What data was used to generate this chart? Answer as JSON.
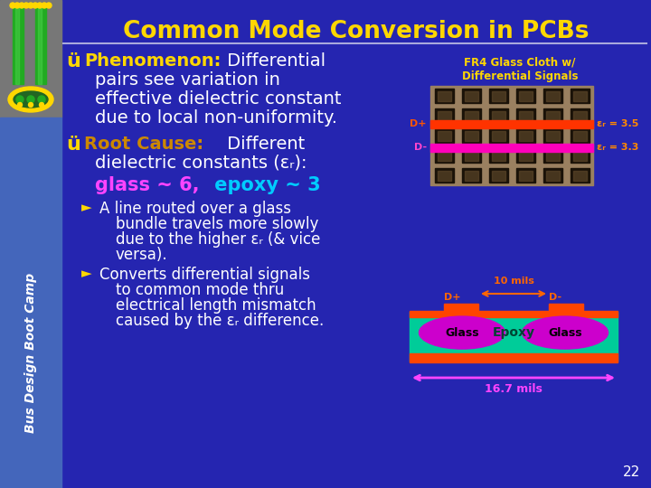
{
  "title": "Common Mode Conversion in PCBs",
  "title_color": "#FFD700",
  "bg_color": "#2525b0",
  "sidebar_top_bg": "#888888",
  "sidebar_bot_bg": "#5570cc",
  "text_color": "#ffffff",
  "bullet_check_color": "#FFD700",
  "bullet1_label": "Phenomenon:",
  "bullet1_label_color": "#FFD700",
  "bullet2_label": "Root Cause:",
  "bullet2_label_color": "#CC8800",
  "glass_color": "#FF44FF",
  "epoxy_color": "#00CCFF",
  "fr4_title_color": "#FFD700",
  "fr4_title": "FR4 Glass Cloth w/\nDifferential Signals",
  "dplus_color": "#FF4400",
  "dminus_color": "#FF44FF",
  "er_color": "#FF8800",
  "pcb_green": "#00CC99",
  "pcb_red": "#FF4400",
  "glass_ellipse_color": "#CC00CC",
  "arrow_10mils_color": "#FF6600",
  "arrow_16mils_color": "#FF44FF",
  "page_num": "22",
  "sidebar_text": "Bus Design Boot Camp"
}
